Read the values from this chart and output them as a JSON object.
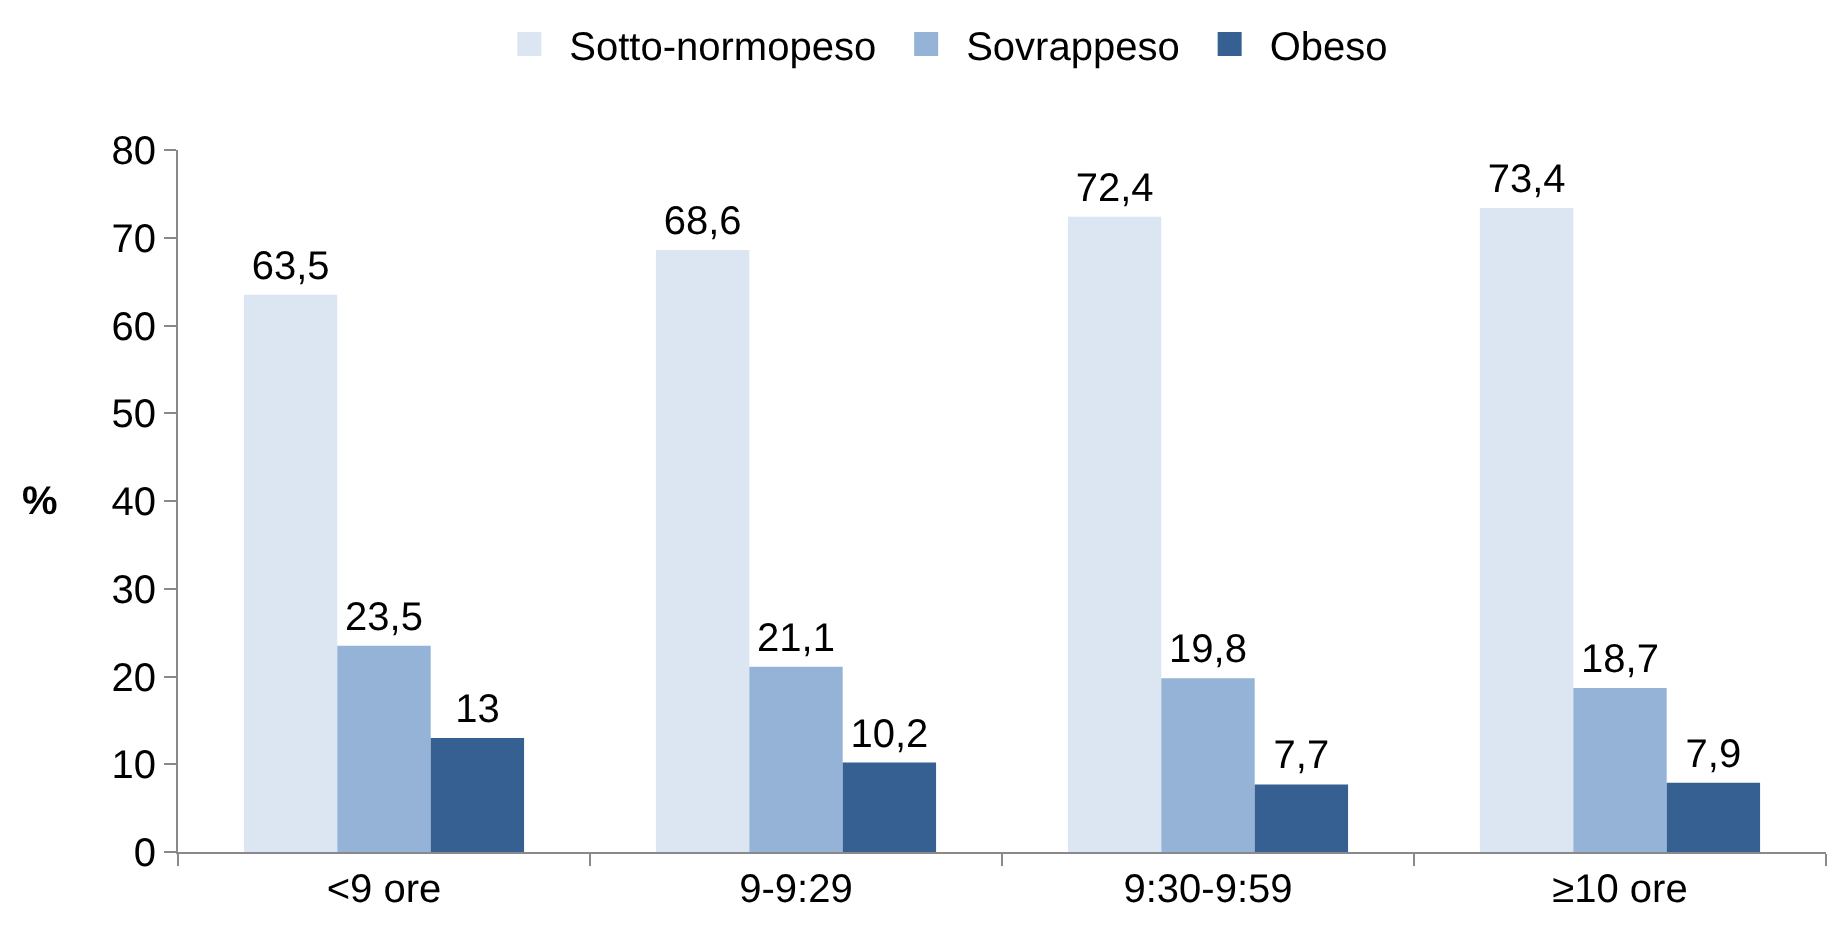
{
  "chart_data": {
    "type": "bar",
    "ylabel": "%",
    "categories": [
      "<9 ore",
      "9-9:29",
      "9:30-9:59",
      "≥10 ore"
    ],
    "series": [
      {
        "name": "Sotto-normopeso",
        "color": "#dce6f2",
        "values": [
          63.5,
          68.6,
          72.4,
          73.4
        ],
        "value_labels": [
          "63,5",
          "68,6",
          "72,4",
          "73,4"
        ]
      },
      {
        "name": "Sovrappeso",
        "color": "#95b3d7",
        "values": [
          23.5,
          21.1,
          19.8,
          18.7
        ],
        "value_labels": [
          "23,5",
          "21,1",
          "19,8",
          "18,7"
        ]
      },
      {
        "name": "Obeso",
        "color": "#376092",
        "values": [
          13,
          10.2,
          7.7,
          7.9
        ],
        "value_labels": [
          "13",
          "10,2",
          "7,7",
          "7,9"
        ]
      }
    ],
    "ylim": [
      0,
      80
    ],
    "yticks": [
      0,
      10,
      20,
      30,
      40,
      50,
      60,
      70,
      80
    ],
    "grid": false,
    "legend": "top"
  }
}
